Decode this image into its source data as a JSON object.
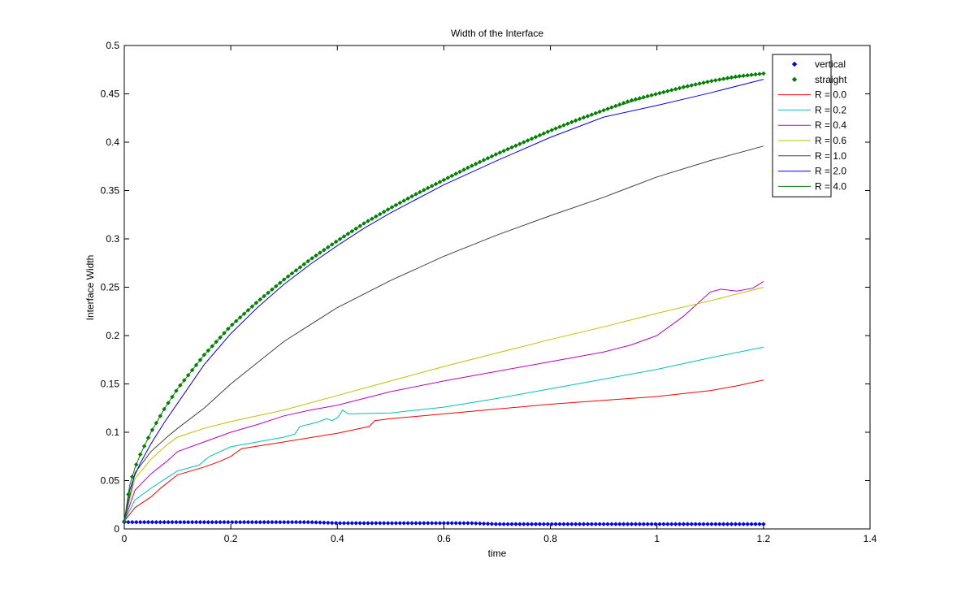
{
  "chart_data": {
    "type": "line",
    "title": "Width of the Interface",
    "xlabel": "time",
    "ylabel": "Interface Width",
    "xlim": [
      0,
      1.4
    ],
    "ylim": [
      0,
      0.5
    ],
    "xticks": [
      0,
      0.2,
      0.4,
      0.6,
      0.8,
      1,
      1.2,
      1.4
    ],
    "xtick_labels": [
      "0",
      "0.2",
      "0.4",
      "0.6",
      "0.8",
      "1",
      "1.2",
      "1.4"
    ],
    "yticks": [
      0,
      0.05,
      0.1,
      0.15,
      0.2,
      0.25,
      0.3,
      0.35,
      0.4,
      0.45,
      0.5
    ],
    "ytick_labels": [
      "0",
      "0.05",
      "0.1",
      "0.15",
      "0.2",
      "0.25",
      "0.3",
      "0.35",
      "0.4",
      "0.45",
      "0.5"
    ],
    "grid": false,
    "legend_position": "top-right",
    "series": [
      {
        "name": "vertical",
        "style": "markers",
        "color": "#0000ff",
        "x": [
          0,
          0.05,
          0.1,
          0.15,
          0.2,
          0.25,
          0.3,
          0.35,
          0.4,
          0.45,
          0.5,
          0.55,
          0.6,
          0.65,
          0.7,
          0.75,
          0.8,
          0.85,
          0.9,
          0.95,
          1.0,
          1.05,
          1.1,
          1.15,
          1.2
        ],
        "y": [
          0.007,
          0.007,
          0.007,
          0.007,
          0.007,
          0.007,
          0.007,
          0.007,
          0.006,
          0.006,
          0.006,
          0.006,
          0.006,
          0.006,
          0.005,
          0.005,
          0.005,
          0.005,
          0.005,
          0.005,
          0.005,
          0.005,
          0.005,
          0.005,
          0.005
        ]
      },
      {
        "name": "straight",
        "style": "markers",
        "color": "#008000",
        "x": [
          0,
          0.01,
          0.02,
          0.03,
          0.05,
          0.075,
          0.1,
          0.15,
          0.2,
          0.25,
          0.3,
          0.35,
          0.4,
          0.45,
          0.5,
          0.55,
          0.6,
          0.65,
          0.7,
          0.75,
          0.8,
          0.85,
          0.9,
          0.95,
          1.0,
          1.05,
          1.1,
          1.15,
          1.2
        ],
        "y": [
          0.008,
          0.045,
          0.063,
          0.077,
          0.1,
          0.124,
          0.145,
          0.18,
          0.21,
          0.235,
          0.258,
          0.279,
          0.298,
          0.316,
          0.332,
          0.347,
          0.361,
          0.375,
          0.388,
          0.4,
          0.412,
          0.423,
          0.433,
          0.443,
          0.45,
          0.457,
          0.463,
          0.468,
          0.471
        ]
      },
      {
        "name": "R = 0.0",
        "style": "line",
        "color": "#ff0000",
        "x": [
          0,
          0.02,
          0.05,
          0.07,
          0.1,
          0.15,
          0.18,
          0.2,
          0.22,
          0.3,
          0.4,
          0.46,
          0.47,
          0.5,
          0.6,
          0.7,
          0.8,
          0.9,
          1.0,
          1.05,
          1.1,
          1.15,
          1.2
        ],
        "y": [
          0.008,
          0.022,
          0.033,
          0.043,
          0.056,
          0.064,
          0.07,
          0.075,
          0.083,
          0.09,
          0.099,
          0.106,
          0.112,
          0.114,
          0.119,
          0.124,
          0.129,
          0.133,
          0.137,
          0.14,
          0.143,
          0.148,
          0.154
        ]
      },
      {
        "name": "R = 0.2",
        "style": "line",
        "color": "#00bfbf",
        "x": [
          0,
          0.02,
          0.05,
          0.08,
          0.1,
          0.14,
          0.16,
          0.2,
          0.25,
          0.3,
          0.32,
          0.33,
          0.36,
          0.38,
          0.39,
          0.4,
          0.41,
          0.42,
          0.5,
          0.6,
          0.7,
          0.8,
          0.9,
          1.0,
          1.1,
          1.2
        ],
        "y": [
          0.008,
          0.03,
          0.042,
          0.053,
          0.06,
          0.066,
          0.075,
          0.085,
          0.09,
          0.095,
          0.098,
          0.106,
          0.11,
          0.114,
          0.112,
          0.115,
          0.123,
          0.119,
          0.12,
          0.126,
          0.135,
          0.145,
          0.155,
          0.165,
          0.177,
          0.188
        ]
      },
      {
        "name": "R = 0.4",
        "style": "line",
        "color": "#bf00bf",
        "x": [
          0,
          0.02,
          0.05,
          0.08,
          0.1,
          0.15,
          0.2,
          0.25,
          0.3,
          0.35,
          0.4,
          0.5,
          0.6,
          0.7,
          0.8,
          0.9,
          0.95,
          1.0,
          1.05,
          1.1,
          1.12,
          1.15,
          1.18,
          1.2
        ],
        "y": [
          0.008,
          0.04,
          0.057,
          0.07,
          0.08,
          0.09,
          0.1,
          0.108,
          0.117,
          0.123,
          0.128,
          0.142,
          0.153,
          0.163,
          0.173,
          0.183,
          0.19,
          0.2,
          0.22,
          0.245,
          0.248,
          0.246,
          0.249,
          0.256
        ]
      },
      {
        "name": "R = 0.6",
        "style": "line",
        "color": "#bfbf00",
        "x": [
          0,
          0.02,
          0.05,
          0.08,
          0.1,
          0.15,
          0.2,
          0.3,
          0.4,
          0.5,
          0.6,
          0.7,
          0.8,
          0.9,
          1.0,
          1.1,
          1.2
        ],
        "y": [
          0.008,
          0.052,
          0.072,
          0.087,
          0.095,
          0.104,
          0.111,
          0.123,
          0.138,
          0.153,
          0.168,
          0.182,
          0.196,
          0.209,
          0.223,
          0.236,
          0.25
        ]
      },
      {
        "name": "R = 1.0",
        "style": "line",
        "color": "#404040",
        "x": [
          0,
          0.02,
          0.05,
          0.08,
          0.1,
          0.15,
          0.2,
          0.3,
          0.4,
          0.5,
          0.6,
          0.7,
          0.8,
          0.9,
          1.0,
          1.1,
          1.2
        ],
        "y": [
          0.008,
          0.058,
          0.08,
          0.095,
          0.104,
          0.125,
          0.15,
          0.194,
          0.229,
          0.257,
          0.282,
          0.304,
          0.324,
          0.343,
          0.364,
          0.381,
          0.396
        ]
      },
      {
        "name": "R = 2.0",
        "style": "line",
        "color": "#0000ff",
        "x": [
          0,
          0.01,
          0.02,
          0.03,
          0.05,
          0.075,
          0.1,
          0.15,
          0.2,
          0.25,
          0.3,
          0.35,
          0.4,
          0.45,
          0.5,
          0.6,
          0.7,
          0.8,
          0.9,
          1.0,
          1.1,
          1.2
        ],
        "y": [
          0.008,
          0.04,
          0.056,
          0.068,
          0.088,
          0.11,
          0.13,
          0.17,
          0.202,
          0.229,
          0.253,
          0.274,
          0.293,
          0.311,
          0.327,
          0.356,
          0.381,
          0.405,
          0.426,
          0.438,
          0.451,
          0.465
        ]
      },
      {
        "name": "R = 4.0",
        "style": "line",
        "color": "#008000",
        "x": [
          0,
          0.01,
          0.02,
          0.03,
          0.05,
          0.075,
          0.1,
          0.15,
          0.2,
          0.25,
          0.3,
          0.35,
          0.4,
          0.45,
          0.5,
          0.6,
          0.7,
          0.8,
          0.9,
          1.0,
          1.1,
          1.2
        ],
        "y": [
          0.008,
          0.045,
          0.063,
          0.077,
          0.1,
          0.124,
          0.145,
          0.18,
          0.21,
          0.235,
          0.258,
          0.279,
          0.298,
          0.316,
          0.332,
          0.361,
          0.388,
          0.412,
          0.433,
          0.45,
          0.463,
          0.471
        ]
      }
    ]
  }
}
